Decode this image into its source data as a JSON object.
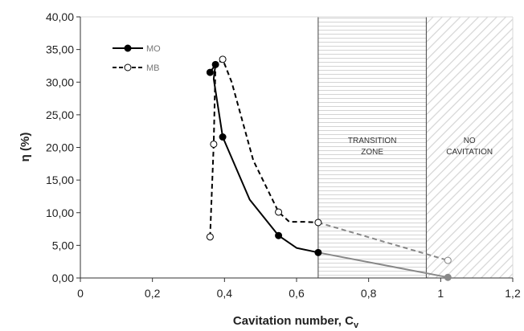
{
  "chart_data": {
    "type": "line",
    "xlabel": "Cavitation number, C",
    "xlabel_subscript": "v",
    "ylabel": "η (%)",
    "xlim": [
      0,
      1.2
    ],
    "ylim": [
      0,
      40
    ],
    "x_ticks": [
      "0",
      "0,2",
      "0,4",
      "0,6",
      "0,8",
      "1",
      "1,2"
    ],
    "x_tick_values": [
      0,
      0.2,
      0.4,
      0.6,
      0.8,
      1.0,
      1.2
    ],
    "y_ticks": [
      "0,00",
      "5,00",
      "10,00",
      "15,00",
      "20,00",
      "25,00",
      "30,00",
      "35,00",
      "40,00"
    ],
    "y_tick_values": [
      0,
      5,
      10,
      15,
      20,
      25,
      30,
      35,
      40
    ],
    "legend_position": "top-left",
    "series": [
      {
        "name": "MO",
        "color": "#000000",
        "line_style": "solid",
        "marker": "filled-circle",
        "x": [
          0.36,
          0.375,
          0.395,
          0.55,
          0.66
        ],
        "y": [
          31.5,
          32.7,
          21.6,
          6.5,
          3.9
        ],
        "path_x": [
          0.36,
          0.375,
          0.37,
          0.395,
          0.47,
          0.55,
          0.6,
          0.66
        ],
        "path_y": [
          31.5,
          32.7,
          30.5,
          21.6,
          12.0,
          6.5,
          4.6,
          3.9
        ],
        "extrapolated": {
          "x": [
            0.66,
            1.02
          ],
          "y": [
            3.9,
            0.1
          ],
          "color": "#888888"
        }
      },
      {
        "name": "MB",
        "color": "#000000",
        "line_style": "dashed",
        "marker": "open-circle",
        "x": [
          0.36,
          0.37,
          0.395,
          0.55,
          0.66
        ],
        "y": [
          6.3,
          20.5,
          33.5,
          10.1,
          8.5
        ],
        "path_x": [
          0.36,
          0.37,
          0.375,
          0.395,
          0.42,
          0.48,
          0.55,
          0.58,
          0.62,
          0.66
        ],
        "path_y": [
          6.3,
          20.5,
          32.5,
          33.5,
          30.0,
          18.0,
          10.1,
          8.6,
          8.6,
          8.5
        ],
        "extrapolated": {
          "x": [
            0.66,
            1.02
          ],
          "y": [
            8.5,
            2.7
          ],
          "color": "#888888"
        }
      }
    ],
    "zones": [
      {
        "label_lines": [
          "TRANSITION",
          "ZONE"
        ],
        "x_start": 0.66,
        "x_end": 0.96,
        "pattern": "horizontal"
      },
      {
        "label_lines": [
          "NO",
          "CAVITATION"
        ],
        "x_start": 0.96,
        "x_end": 1.2,
        "pattern": "diagonal"
      }
    ]
  }
}
